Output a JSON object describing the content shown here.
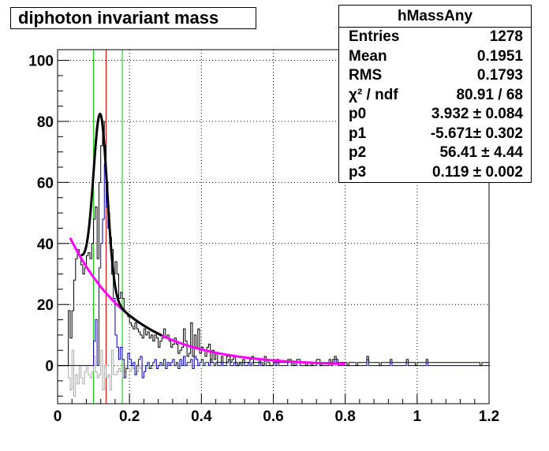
{
  "chart_data": {
    "type": "line",
    "title": "diphoton invariant mass",
    "xlabel": "",
    "ylabel": "",
    "xlim": [
      0,
      1.2
    ],
    "ylim": [
      -12.5,
      103.5
    ],
    "x_ticks": [
      "0",
      "0.2",
      "0.4",
      "0.6",
      "0.8",
      "1",
      "1.2"
    ],
    "y_ticks": [
      "0",
      "20",
      "40",
      "60",
      "80",
      "100"
    ],
    "grid": true,
    "vertical_markers": [
      {
        "x": 0.1,
        "color": "#00cc00"
      },
      {
        "x": 0.135,
        "color": "#cc0000"
      },
      {
        "x": 0.18,
        "color": "#00cc00"
      }
    ],
    "histograms": {
      "bin_start": 0.0,
      "bin_width": 0.005,
      "total": [
        0,
        0,
        0,
        0,
        0,
        0,
        18,
        9,
        18,
        28,
        35,
        38,
        36,
        33,
        30,
        32,
        36,
        37,
        35,
        40,
        48,
        52,
        35,
        60,
        72,
        80,
        72,
        60,
        50,
        42,
        38,
        30,
        34,
        30,
        22,
        24,
        22,
        18,
        17,
        16,
        14,
        13,
        12,
        14,
        12,
        11,
        10,
        9,
        12,
        10,
        11,
        9,
        10,
        8,
        10,
        9,
        6,
        8,
        9,
        12,
        9,
        10,
        8,
        6,
        7,
        9,
        7,
        4,
        5,
        6,
        12,
        8,
        3,
        4,
        14,
        3,
        10,
        6,
        12,
        4,
        6,
        5,
        3,
        6,
        7,
        1,
        5,
        2,
        4,
        1,
        1,
        3,
        1,
        1,
        3,
        3,
        1,
        2,
        3,
        1,
        0,
        1,
        1,
        2,
        1,
        1,
        1,
        2,
        3,
        1,
        1,
        1,
        2,
        1,
        0,
        3,
        2,
        1,
        0,
        0,
        2,
        1,
        2,
        1,
        1,
        1,
        1,
        1,
        2,
        2,
        1,
        0,
        1,
        2,
        2,
        1,
        1,
        1,
        0,
        1,
        1,
        0,
        1,
        1,
        2,
        2,
        0,
        1,
        1,
        1,
        1,
        2,
        1,
        2,
        3,
        2,
        1,
        1,
        1,
        1,
        1,
        0,
        1,
        1,
        1,
        1,
        0,
        1,
        1,
        1,
        1,
        1,
        3,
        1,
        1,
        1,
        1,
        1,
        1,
        0,
        1,
        1,
        1,
        1,
        1,
        2,
        1,
        1,
        1,
        1,
        1,
        1,
        1,
        1,
        2,
        1,
        1,
        1,
        1,
        0,
        1,
        1,
        1,
        1,
        1,
        2,
        1,
        1,
        1,
        1,
        1,
        1,
        1,
        1,
        1,
        1,
        1,
        1,
        1,
        1,
        1,
        1,
        1,
        1,
        1,
        1,
        1,
        1,
        1,
        1,
        1,
        1,
        1,
        1,
        1,
        0,
        1,
        1,
        1,
        1
      ],
      "background": [
        0,
        0,
        0,
        0,
        0,
        0,
        -4,
        -8,
        5,
        -10,
        -3,
        -6,
        0,
        -4,
        -6,
        -2,
        0,
        -3,
        -4,
        -2,
        3,
        -2,
        -4,
        -3,
        5,
        -8,
        0,
        -4,
        -3,
        -8,
        5,
        -3,
        -3,
        -2,
        -1,
        -2,
        -4,
        -2,
        0,
        -1,
        -2,
        0,
        -1,
        -3,
        -2,
        0,
        -1,
        0,
        0,
        -1,
        0,
        0,
        -1,
        0,
        0,
        0,
        0,
        0,
        0,
        0,
        0,
        0,
        0,
        0,
        0,
        0,
        0,
        0,
        0,
        0,
        0,
        0,
        0,
        0,
        0,
        0,
        0,
        0,
        0,
        0,
        0,
        0,
        0,
        0,
        0,
        0,
        0,
        0,
        0,
        0,
        0,
        0,
        0,
        0,
        0,
        0,
        0,
        0,
        0,
        0,
        0,
        0,
        0,
        0,
        0,
        0,
        0,
        0,
        0,
        0,
        0,
        0,
        0,
        0,
        0,
        0,
        0,
        0,
        0,
        0,
        0,
        0,
        0,
        0,
        0,
        0,
        0,
        0,
        0,
        0,
        0,
        0,
        0,
        0,
        0,
        0,
        0,
        0,
        0,
        0,
        0,
        0,
        0,
        0,
        0,
        0,
        0,
        0,
        0,
        0,
        0,
        0,
        0,
        0,
        0,
        0,
        0,
        0,
        0,
        0,
        0,
        0,
        0,
        0,
        0,
        0,
        0,
        0,
        0,
        0,
        0,
        0,
        0,
        0,
        0,
        0,
        0,
        0,
        0,
        0,
        0,
        0,
        0,
        0,
        0,
        0,
        0,
        0,
        0,
        0,
        0,
        0,
        0,
        0,
        0,
        0,
        0,
        0,
        0,
        0,
        0,
        0,
        0,
        0,
        0,
        0,
        0,
        0,
        0,
        0,
        0,
        0,
        0,
        0,
        0,
        0,
        0,
        0,
        0,
        0,
        0,
        0,
        0,
        0,
        0,
        0,
        0,
        0,
        0,
        0,
        0,
        0,
        0,
        0,
        0,
        0,
        0,
        0,
        0,
        0,
        0
      ],
      "subtracted": [
        0,
        0,
        0,
        0,
        0,
        0,
        0,
        0,
        0,
        0,
        0,
        0,
        0,
        0,
        0,
        0,
        0,
        0,
        0,
        0,
        8,
        15,
        0,
        32,
        40,
        48,
        66,
        52,
        45,
        40,
        30,
        22,
        10,
        6,
        2,
        6,
        2,
        -4,
        -1,
        4,
        2,
        0,
        1,
        -3,
        0,
        2,
        3,
        -4,
        -2,
        0,
        1,
        -1,
        0,
        1,
        2,
        -1,
        0,
        1,
        0,
        2,
        -1,
        1,
        0,
        1,
        2,
        0,
        1,
        -1,
        2,
        0,
        3,
        0,
        1,
        1,
        2,
        -1,
        3,
        2,
        0,
        1,
        2,
        0,
        1,
        1,
        0,
        2,
        1,
        0,
        1,
        0,
        0,
        1,
        0,
        0,
        1,
        2,
        0,
        0,
        1,
        0,
        0,
        1,
        0,
        1,
        0,
        0,
        1,
        0,
        1,
        0,
        0,
        0,
        1,
        0,
        0,
        2,
        0,
        0,
        0,
        0,
        1,
        0,
        1,
        0,
        0,
        0,
        0,
        0,
        1,
        1,
        0,
        0,
        0,
        1,
        1,
        0,
        0,
        0,
        0,
        0,
        0,
        0,
        0,
        0,
        1,
        1,
        0,
        0,
        0,
        0,
        0,
        1,
        0,
        1,
        2,
        1,
        0,
        0,
        0,
        0,
        0,
        0,
        0,
        0,
        0,
        0,
        0,
        0,
        0,
        0,
        0,
        0,
        2,
        0,
        0,
        0,
        0,
        0,
        0,
        0,
        0,
        0,
        0,
        0,
        0,
        1,
        0,
        0,
        0,
        0,
        0,
        0,
        0,
        0,
        1,
        0,
        0,
        0,
        0,
        0,
        0,
        0,
        0,
        0,
        0,
        1,
        0,
        0,
        0,
        0,
        0,
        0,
        0,
        0,
        0,
        0,
        0,
        0,
        0,
        0,
        0,
        0,
        0,
        0,
        0,
        0,
        0,
        0,
        0,
        0,
        0,
        0,
        0,
        0,
        0,
        0,
        0,
        0,
        0,
        0
      ]
    },
    "fit": {
      "formula": "exp(p0 + p1*x) + p2*exp(-0.5*((x-p3)/sigma)^2)",
      "params": {
        "p0": 3.932,
        "p1": -5.671,
        "p2": 56.41,
        "p3": 0.119,
        "sigma": 0.019
      },
      "total_range": [
        0.065,
        0.29
      ],
      "background_range": [
        0.035,
        0.8
      ]
    },
    "colors": {
      "total": "#000000",
      "background": "#aaaaaa",
      "subtracted": "#0000bb",
      "fit_total": "#000000",
      "fit_background": "#ff00ff",
      "grid": "#000000"
    }
  },
  "stats": {
    "name": "hMassAny",
    "rows": [
      {
        "key": "Entries",
        "value": "1278"
      },
      {
        "key": "Mean",
        "value": "0.1951"
      },
      {
        "key": "RMS",
        "value": "0.1793"
      },
      {
        "key": "χ² / ndf",
        "value": "80.91 / 68"
      },
      {
        "key": "p0",
        "value": "3.932 ± 0.084"
      },
      {
        "key": "p1",
        "value": "-5.671± 0.302"
      },
      {
        "key": "p2",
        "value": "56.41 ± 4.44"
      },
      {
        "key": "p3",
        "value": "0.119 ± 0.002"
      }
    ]
  }
}
